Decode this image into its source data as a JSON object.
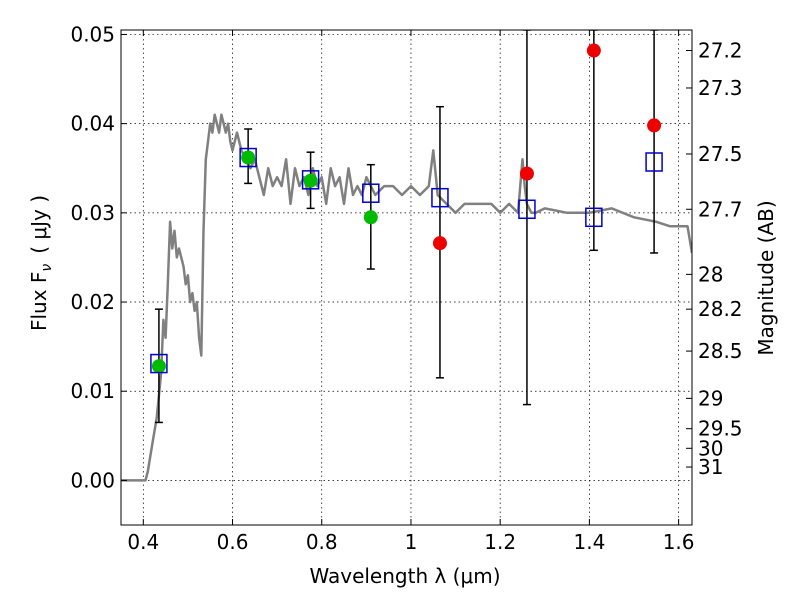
{
  "chart_data": {
    "type": "scatter",
    "xlabel": "Wavelength  λ (μm)",
    "ylabel": "Flux  F",
    "ylabel_subscript": "ν",
    "ylabel_unit": "( μJy )",
    "y2label": "Magnitude (AB)",
    "xlim": [
      0.35,
      1.63
    ],
    "ylim": [
      -0.005,
      0.0505
    ],
    "grid": true,
    "x_ticks": [
      0.4,
      0.6,
      0.8,
      1.0,
      1.2,
      1.4,
      1.6
    ],
    "x_tick_labels": [
      "0.4",
      "0.6",
      "0.8",
      "1",
      "1.2",
      "1.4",
      "1.6"
    ],
    "y_ticks": [
      0.0,
      0.01,
      0.02,
      0.03,
      0.04,
      0.05
    ],
    "y_tick_labels": [
      "0.00",
      "0.01",
      "0.02",
      "0.03",
      "0.04",
      "0.05"
    ],
    "mag_ticks": [
      {
        "label": "27.2",
        "flux": 0.0482
      },
      {
        "label": "27.3",
        "flux": 0.044
      },
      {
        "label": "27.5",
        "flux": 0.0366
      },
      {
        "label": "27.7",
        "flux": 0.0304
      },
      {
        "label": "28",
        "flux": 0.0231
      },
      {
        "label": "28.2",
        "flux": 0.0192
      },
      {
        "label": "28.5",
        "flux": 0.0145
      },
      {
        "label": "29",
        "flux": 0.0092
      },
      {
        "label": "29.5",
        "flux": 0.0058
      },
      {
        "label": "30",
        "flux": 0.0036
      },
      {
        "label": "31",
        "flux": 0.0015
      }
    ],
    "colors": {
      "model": "#808080",
      "detected": "#00bb00",
      "upper": "#ee0000",
      "synthetic": "#0000cc",
      "errorbar": "#000000"
    },
    "series": [
      {
        "style": "line",
        "x": [
          0.35,
          0.39,
          0.405,
          0.41,
          0.42,
          0.43,
          0.44,
          0.445,
          0.45,
          0.455,
          0.46,
          0.465,
          0.47,
          0.475,
          0.48,
          0.49,
          0.495,
          0.5,
          0.505,
          0.51,
          0.515,
          0.52,
          0.525,
          0.53,
          0.535,
          0.54,
          0.545,
          0.55,
          0.555,
          0.56,
          0.565,
          0.57,
          0.575,
          0.58,
          0.585,
          0.59,
          0.595,
          0.6,
          0.61,
          0.62,
          0.63,
          0.64,
          0.65,
          0.66,
          0.67,
          0.68,
          0.69,
          0.7,
          0.71,
          0.72,
          0.73,
          0.74,
          0.75,
          0.76,
          0.77,
          0.78,
          0.79,
          0.8,
          0.81,
          0.82,
          0.83,
          0.84,
          0.85,
          0.86,
          0.87,
          0.88,
          0.89,
          0.9,
          0.92,
          0.94,
          0.96,
          0.98,
          1.0,
          1.02,
          1.04,
          1.05,
          1.06,
          1.08,
          1.1,
          1.12,
          1.14,
          1.16,
          1.18,
          1.2,
          1.22,
          1.24,
          1.25,
          1.255,
          1.26,
          1.27,
          1.28,
          1.3,
          1.35,
          1.4,
          1.45,
          1.5,
          1.55,
          1.58,
          1.6,
          1.62,
          1.63
        ],
        "y": [
          0.0,
          0.0,
          0.0,
          0.001,
          0.004,
          0.007,
          0.012,
          0.018,
          0.016,
          0.022,
          0.029,
          0.026,
          0.028,
          0.025,
          0.026,
          0.024,
          0.022,
          0.023,
          0.02,
          0.021,
          0.019,
          0.02,
          0.016,
          0.014,
          0.028,
          0.036,
          0.038,
          0.04,
          0.039,
          0.041,
          0.04,
          0.039,
          0.041,
          0.04,
          0.039,
          0.04,
          0.038,
          0.037,
          0.039,
          0.037,
          0.036,
          0.035,
          0.036,
          0.034,
          0.032,
          0.035,
          0.033,
          0.034,
          0.033,
          0.036,
          0.031,
          0.035,
          0.033,
          0.034,
          0.032,
          0.035,
          0.033,
          0.034,
          0.031,
          0.035,
          0.033,
          0.034,
          0.031,
          0.035,
          0.032,
          0.033,
          0.032,
          0.034,
          0.032,
          0.033,
          0.033,
          0.032,
          0.033,
          0.032,
          0.033,
          0.037,
          0.032,
          0.031,
          0.03,
          0.031,
          0.031,
          0.031,
          0.031,
          0.03,
          0.031,
          0.03,
          0.036,
          0.033,
          0.031,
          0.03,
          0.03,
          0.0305,
          0.03,
          0.03,
          0.0305,
          0.0295,
          0.029,
          0.0285,
          0.0285,
          0.0285,
          0.0255
        ]
      },
      {
        "style": "green-dot",
        "x": [
          0.435,
          0.635,
          0.775,
          0.91
        ],
        "y": [
          0.0128,
          0.0362,
          0.0336,
          0.0295
        ]
      },
      {
        "style": "red-dot",
        "x": [
          1.065,
          1.26,
          1.41,
          1.545
        ],
        "y": [
          0.0266,
          0.0344,
          0.0482,
          0.0398
        ]
      },
      {
        "style": "blue-square",
        "x": [
          0.435,
          0.635,
          0.775,
          0.91,
          1.065,
          1.26,
          1.41,
          1.545
        ],
        "y": [
          0.0131,
          0.0362,
          0.0337,
          0.0322,
          0.0317,
          0.0304,
          0.0295,
          0.0357
        ]
      },
      {
        "style": "errorbar",
        "x": [
          0.435,
          0.635,
          0.775,
          0.91,
          1.065,
          1.26,
          1.41,
          1.545
        ],
        "ylow": [
          0.0065,
          0.0333,
          0.0305,
          0.0237,
          0.0115,
          0.0085,
          0.0258,
          0.0255
        ],
        "yhigh": [
          0.0192,
          0.0394,
          0.0368,
          0.0354,
          0.0419,
          0.0505,
          0.0505,
          0.0505
        ]
      }
    ]
  }
}
